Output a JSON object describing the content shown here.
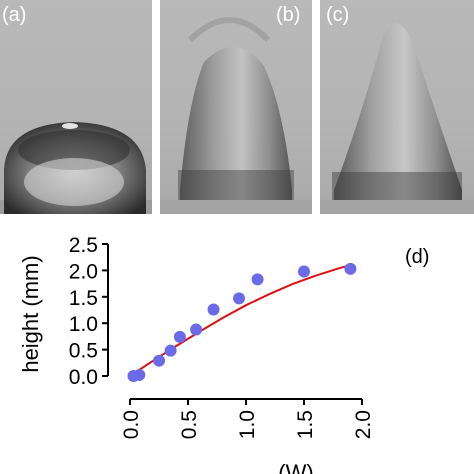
{
  "panels": [
    {
      "label": "(a)"
    },
    {
      "label": "(b)"
    },
    {
      "label": "(c)"
    }
  ],
  "panel_d_label": "(d)",
  "chart_data": {
    "type": "scatter",
    "title": "",
    "xlabel": "(W)",
    "ylabel": "height (mm)",
    "xlim": [
      0.0,
      2.0
    ],
    "ylim": [
      0.0,
      2.5
    ],
    "xticks": [
      "0.0",
      "0.5",
      "1.0",
      "1.5",
      "2.0"
    ],
    "yticks": [
      "0.0",
      "0.5",
      "1.0",
      "1.5",
      "2.0",
      "2.5"
    ],
    "points": {
      "x": [
        0.03,
        0.08,
        0.25,
        0.35,
        0.43,
        0.57,
        0.72,
        0.94,
        1.1,
        1.5,
        1.9
      ],
      "y": [
        0.0,
        0.02,
        0.29,
        0.48,
        0.74,
        0.88,
        1.26,
        1.47,
        1.83,
        1.98,
        2.03
      ],
      "color": "#6b6bea"
    },
    "fit_curve": {
      "x": [
        0.0,
        0.2,
        0.4,
        0.6,
        0.8,
        1.0,
        1.2,
        1.4,
        1.6,
        1.8,
        1.9
      ],
      "y": [
        0.0,
        0.29,
        0.57,
        0.84,
        1.1,
        1.34,
        1.55,
        1.74,
        1.9,
        2.04,
        2.1
      ],
      "color": "#dd1111"
    },
    "grid": false
  }
}
